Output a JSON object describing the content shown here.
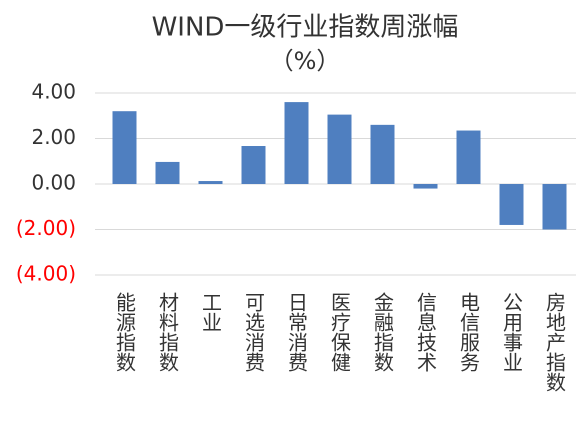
{
  "chart_data": {
    "type": "bar",
    "title": "WIND一级行业指数周涨幅",
    "subtitle": "（%）",
    "categories": [
      "能源指数",
      "材料指数",
      "工业",
      "可选消费",
      "日常消费",
      "医疗保健",
      "金融指数",
      "信息技术",
      "电信服务",
      "公用事业",
      "房地产指数"
    ],
    "values": [
      3.2,
      0.97,
      0.13,
      1.67,
      3.6,
      3.05,
      2.6,
      -0.2,
      2.35,
      -1.8,
      -2.0
    ],
    "color": "#4f7fc0",
    "ylim": [
      -4,
      4
    ],
    "yticks": [
      {
        "value": -4,
        "label": "(4.00)"
      },
      {
        "value": -2,
        "label": "(2.00)"
      },
      {
        "value": 0,
        "label": "0.00"
      },
      {
        "value": 2,
        "label": "2.00"
      },
      {
        "value": 4,
        "label": "4.00"
      }
    ],
    "negative_tick_label_color": "#ff0000",
    "grid": true
  }
}
